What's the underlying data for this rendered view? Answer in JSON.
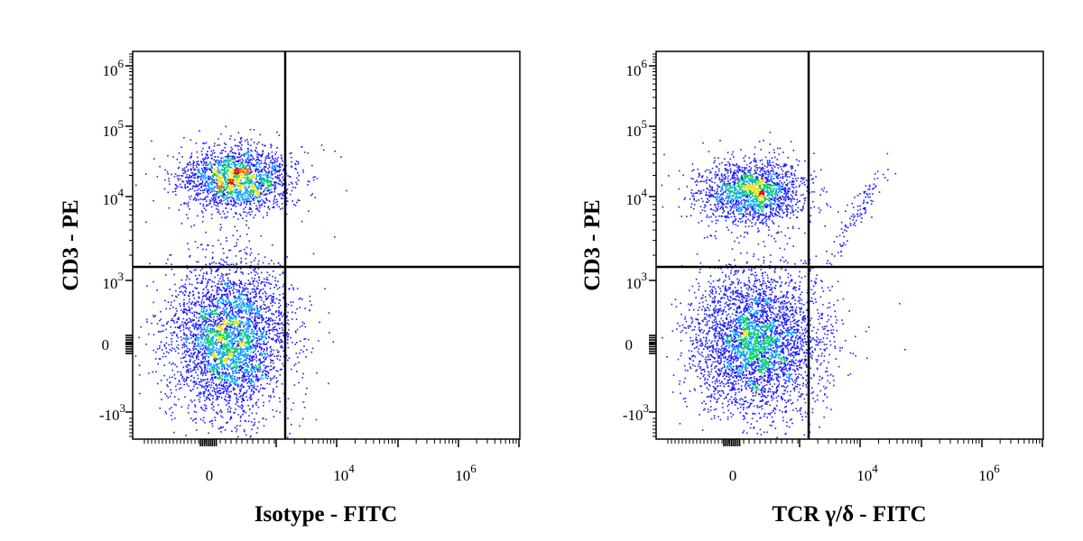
{
  "chart_data": [
    {
      "type": "scatter",
      "title": "",
      "xlabel": "Isotype - FITC",
      "ylabel": "CD3 - PE",
      "x_scale": "biexponential",
      "y_scale": "biexponential",
      "xlim": [
        -300,
        1000000
      ],
      "ylim": [
        -2000,
        1500000
      ],
      "x_ticks": [
        {
          "base": "0",
          "exp": ""
        },
        {
          "base": "10",
          "exp": "4"
        },
        {
          "base": "10",
          "exp": "6"
        }
      ],
      "y_ticks": [
        {
          "base": "10",
          "exp": "6"
        },
        {
          "base": "10",
          "exp": "5"
        },
        {
          "base": "10",
          "exp": "4"
        },
        {
          "base": "10",
          "exp": "3"
        },
        {
          "base": "0",
          "exp": ""
        },
        {
          "base": "-10",
          "exp": "3"
        }
      ],
      "gate": {
        "x": 2000,
        "y": 1300
      },
      "populations": [
        {
          "name": "",
          "cx": 500,
          "cy": 17000,
          "n": 1900
        },
        {
          "name": "",
          "cx": 500,
          "cy": 150,
          "n": 3500
        }
      ],
      "grid": false,
      "legend": "none",
      "colors": [
        "#1a1aff",
        "#00a0ff",
        "#00d060",
        "#ffe000",
        "#ff6600",
        "#e00000"
      ]
    },
    {
      "type": "scatter",
      "title": "",
      "xlabel": "TCR γ/δ - FITC",
      "ylabel": "CD3 - PE",
      "x_scale": "biexponential",
      "y_scale": "biexponential",
      "xlim": [
        -300,
        1000000
      ],
      "ylim": [
        -2000,
        1500000
      ],
      "x_ticks": [
        {
          "base": "0",
          "exp": ""
        },
        {
          "base": "10",
          "exp": "4"
        },
        {
          "base": "10",
          "exp": "6"
        }
      ],
      "y_ticks": [
        {
          "base": "10",
          "exp": "6"
        },
        {
          "base": "10",
          "exp": "5"
        },
        {
          "base": "10",
          "exp": "4"
        },
        {
          "base": "10",
          "exp": "3"
        },
        {
          "base": "0",
          "exp": ""
        },
        {
          "base": "-10",
          "exp": "3"
        }
      ],
      "gate": {
        "x": 2000,
        "y": 1300
      },
      "populations": [
        {
          "name": "",
          "cx": 200,
          "cy": 11000,
          "n": 1700
        },
        {
          "name": "",
          "cx": 200,
          "cy": 100,
          "n": 3600
        },
        {
          "name": "",
          "cx": 10000,
          "cy": 9000,
          "n": 110
        }
      ],
      "grid": false,
      "legend": "none",
      "colors": [
        "#1a1aff",
        "#00a0ff",
        "#00d060",
        "#ffe000",
        "#ff6600",
        "#e00000"
      ]
    }
  ]
}
